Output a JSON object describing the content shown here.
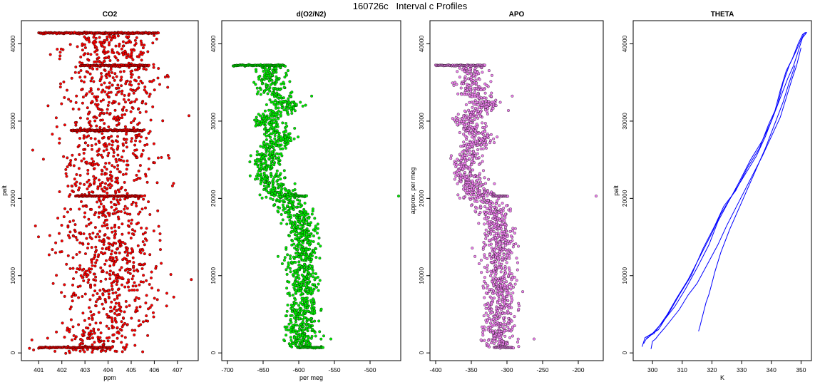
{
  "figure": {
    "title": "160726c   Interval c Profiles"
  },
  "colors": {
    "co2": "#ff0000",
    "o2n2": "#00ee00",
    "apo": "#ee82ee",
    "theta": "#0000ff"
  },
  "chart_data": [
    {
      "type": "scatter",
      "title": "CO2",
      "xlabel": "ppm",
      "ylabel": "palt",
      "xlim": [
        400.25,
        407.9
      ],
      "ylim": [
        -1000,
        43000
      ],
      "xticks": [
        401,
        402,
        403,
        404,
        405,
        406,
        407
      ],
      "yticks": [
        0,
        10000,
        20000,
        30000,
        40000
      ],
      "series": [
        {
          "color": "#ff0000",
          "profile": [
            [
              0,
              403.4
            ],
            [
              800,
              403.3
            ],
            [
              5000,
              404.3
            ],
            [
              10000,
              404.0
            ],
            [
              15000,
              404.0
            ],
            [
              20000,
              404.0
            ],
            [
              25000,
              404.1
            ],
            [
              30000,
              404.0
            ],
            [
              35000,
              404.2
            ],
            [
              38000,
              404.0
            ],
            [
              41500,
              404.1
            ]
          ],
          "spread": 1.0,
          "levels": [
            [
              41400,
              401.0,
              406.2
            ],
            [
              37200,
              402.8,
              405.8
            ],
            [
              28800,
              402.4,
              405.6
            ],
            [
              20300,
              402.6,
              405.5
            ],
            [
              700,
              401.0,
              404.2
            ]
          ],
          "outliers": [
            [
              30700,
              407.5
            ],
            [
              9500,
              407.6
            ],
            [
              600,
              400.6
            ]
          ]
        }
      ]
    },
    {
      "type": "scatter",
      "title": "d(O2/N2)",
      "xlabel": "per meg",
      "ylabel": "",
      "xlim": [
        -708,
        -457
      ],
      "ylim": [
        -1000,
        43000
      ],
      "xticks": [
        -700,
        -650,
        -600,
        -550,
        -500
      ],
      "yticks": [
        0,
        10000,
        20000,
        30000,
        40000
      ],
      "series": [
        {
          "color": "#00ee00",
          "profile": [
            [
              700,
              -595
            ],
            [
              2500,
              -597
            ],
            [
              5000,
              -595
            ],
            [
              8000,
              -592
            ],
            [
              12000,
              -597
            ],
            [
              15000,
              -595
            ],
            [
              18000,
              -600
            ],
            [
              20000,
              -620
            ],
            [
              22000,
              -640
            ],
            [
              24000,
              -645
            ],
            [
              26000,
              -640
            ],
            [
              28000,
              -625
            ],
            [
              30000,
              -648
            ],
            [
              32000,
              -618
            ],
            [
              34000,
              -635
            ],
            [
              36000,
              -640
            ],
            [
              37200,
              -640
            ]
          ],
          "spread": 11,
          "levels": [
            [
              37200,
              -692,
              -618
            ],
            [
              20300,
              -608,
              -588
            ],
            [
              700,
              -600,
              -565
            ]
          ],
          "outliers": [
            [
              20300,
              -460
            ],
            [
              1800,
              -555
            ],
            [
              2200,
              -565
            ]
          ]
        }
      ]
    },
    {
      "type": "scatter",
      "title": "APO",
      "xlabel": "",
      "ylabel": "approx. per meg",
      "xlim": [
        -408,
        -165
      ],
      "ylim": [
        -1000,
        43000
      ],
      "xticks": [
        -400,
        -350,
        -300,
        -250,
        -200
      ],
      "yticks": [
        0,
        10000,
        20000,
        30000,
        40000
      ],
      "series": [
        {
          "color": "#ee82ee",
          "profile": [
            [
              700,
              -310
            ],
            [
              2500,
              -313
            ],
            [
              5000,
              -310
            ],
            [
              8000,
              -308
            ],
            [
              12000,
              -313
            ],
            [
              15000,
              -310
            ],
            [
              18000,
              -315
            ],
            [
              20000,
              -335
            ],
            [
              22000,
              -352
            ],
            [
              24000,
              -358
            ],
            [
              26000,
              -350
            ],
            [
              28000,
              -338
            ],
            [
              30000,
              -360
            ],
            [
              32000,
              -330
            ],
            [
              34000,
              -345
            ],
            [
              36000,
              -350
            ],
            [
              37200,
              -350
            ]
          ],
          "spread": 11,
          "levels": [
            [
              37200,
              -400,
              -330
            ],
            [
              20300,
              -320,
              -298
            ],
            [
              700,
              -318,
              -290
            ]
          ],
          "outliers": [
            [
              20300,
              -175
            ],
            [
              1800,
              -262
            ]
          ]
        }
      ]
    },
    {
      "type": "line",
      "title": "THETA",
      "xlabel": "K",
      "ylabel": "palt",
      "xlim": [
        293.5,
        353.5
      ],
      "ylim": [
        -1000,
        43000
      ],
      "xticks": [
        300,
        310,
        320,
        330,
        340,
        350
      ],
      "yticks": [
        0,
        10000,
        20000,
        30000,
        40000
      ],
      "series": [
        {
          "color": "#0000ff",
          "x": [
            296.5,
            297.5,
            300.5,
            305,
            308,
            312,
            316,
            320,
            323,
            327,
            331,
            335,
            338,
            341,
            343,
            345,
            347,
            349,
            350.5,
            351.5
          ],
          "y": [
            800,
            2000,
            2500,
            5000,
            7000,
            9500,
            12500,
            15500,
            18000,
            20500,
            23000,
            25500,
            28000,
            31000,
            34000,
            36500,
            38000,
            40000,
            41200,
            41500
          ]
        },
        {
          "color": "#0000ff",
          "x": [
            297,
            298.5,
            302,
            306,
            309,
            313,
            317,
            321,
            324,
            328,
            332,
            336,
            339,
            342,
            344,
            346,
            348,
            350,
            351,
            352
          ],
          "y": [
            1200,
            2200,
            3000,
            5500,
            7500,
            10000,
            13500,
            16500,
            19000,
            21000,
            24000,
            26500,
            29500,
            32000,
            35000,
            37200,
            38800,
            40500,
            41300,
            41500
          ]
        },
        {
          "color": "#0000ff",
          "x": [
            298,
            299.5,
            303,
            307.5,
            311,
            315,
            319,
            322,
            325.5,
            329,
            333,
            337,
            340,
            343,
            345.5,
            347.5,
            349,
            350.5,
            351.8
          ],
          "y": [
            1800,
            2300,
            3800,
            6000,
            8200,
            11000,
            14000,
            17000,
            19500,
            22000,
            25000,
            27500,
            30000,
            33000,
            35500,
            37200,
            39000,
            40800,
            41400
          ]
        },
        {
          "color": "#0000ff",
          "x": [
            299.5,
            300,
            301,
            302,
            304,
            306.5,
            309,
            312,
            315,
            318.5,
            322,
            325,
            329,
            333,
            337,
            340,
            343,
            345,
            347,
            348.5,
            350
          ],
          "y": [
            500,
            1500,
            1800,
            2300,
            3200,
            4400,
            5600,
            7500,
            9000,
            11500,
            14000,
            16500,
            19500,
            22500,
            25500,
            28000,
            30500,
            33000,
            35500,
            37200,
            39500
          ]
        },
        {
          "color": "#0000ff",
          "x": [
            315.5,
            316,
            317,
            318,
            319,
            320,
            321,
            323,
            326,
            330,
            334,
            338,
            341,
            344,
            346,
            348
          ],
          "y": [
            2800,
            3500,
            5000,
            6500,
            7600,
            9000,
            10500,
            13000,
            16000,
            19500,
            23000,
            26500,
            29500,
            32500,
            35000,
            37200
          ]
        }
      ]
    }
  ]
}
